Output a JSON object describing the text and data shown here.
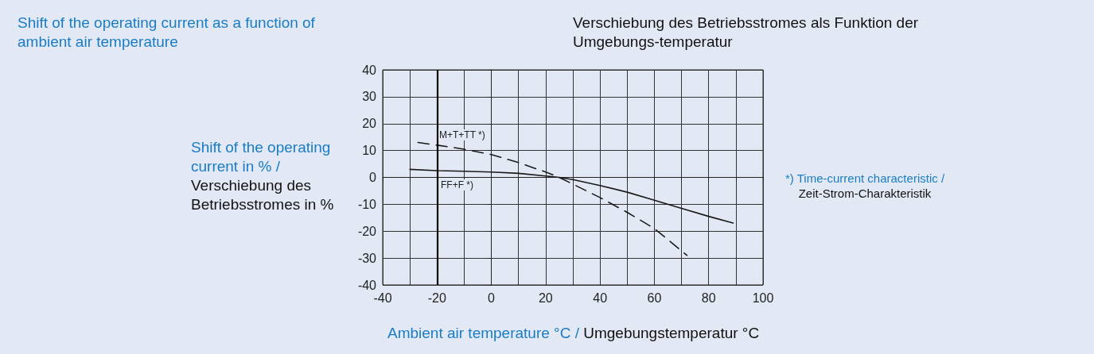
{
  "chart_data": {
    "type": "line",
    "title": "Shift of the operating current as a function of ambient air temperature",
    "subtitle": "Verschiebung des Betriebsstromes als Funktion der Umgebungs-temperatur",
    "xlabel": "Ambient air temperature °C / Umgebungstemperatur °C",
    "ylabel": "Shift of the operating current in % / Verschiebung des Betriebsstromes in %",
    "annotations": [
      "M+T+TT *)",
      "FF+F *)",
      "*) Time-current characteristic / Zeit-Strom-Charakteristik"
    ],
    "series": [
      {
        "color": "#1a1a1a",
        "line_style": "solid",
        "x": [
          -30,
          -20,
          -10,
          0,
          10,
          20,
          25,
          30,
          40,
          50,
          60,
          70,
          80,
          89
        ],
        "values": [
          3,
          2.5,
          2.3,
          2,
          1.5,
          0.5,
          0,
          -0.8,
          -3,
          -5.5,
          -8.5,
          -11.5,
          -14.5,
          -17
        ]
      },
      {
        "color": "#1a1a1a",
        "line_style": "dashed",
        "x": [
          -27,
          -20,
          -10,
          0,
          10,
          20,
          25,
          30,
          40,
          50,
          60,
          72
        ],
        "values": [
          13,
          12,
          10.5,
          8.5,
          5.5,
          2,
          0,
          -2.5,
          -7.5,
          -13,
          -19,
          -29
        ]
      }
    ],
    "xlim": [
      -40,
      100
    ],
    "ylim": [
      -40,
      40
    ],
    "xticks": [
      -40,
      {
        "value": -30,
        "label": null
      },
      -20,
      {
        "value": -10,
        "label": null
      },
      0,
      {
        "value": 10,
        "label": null
      },
      20,
      {
        "value": 30,
        "label": null
      },
      40,
      {
        "value": 50,
        "label": null
      },
      60,
      {
        "value": 70,
        "label": null
      },
      80,
      {
        "value": 90,
        "label": null
      },
      100
    ],
    "yticks": [
      -40,
      -30,
      -20,
      -10,
      0,
      10,
      20,
      30,
      40
    ],
    "ref_lines": [
      {
        "axis": "x",
        "value": -20,
        "color": "#000000"
      }
    ],
    "grid": true,
    "marker": "none"
  }
}
